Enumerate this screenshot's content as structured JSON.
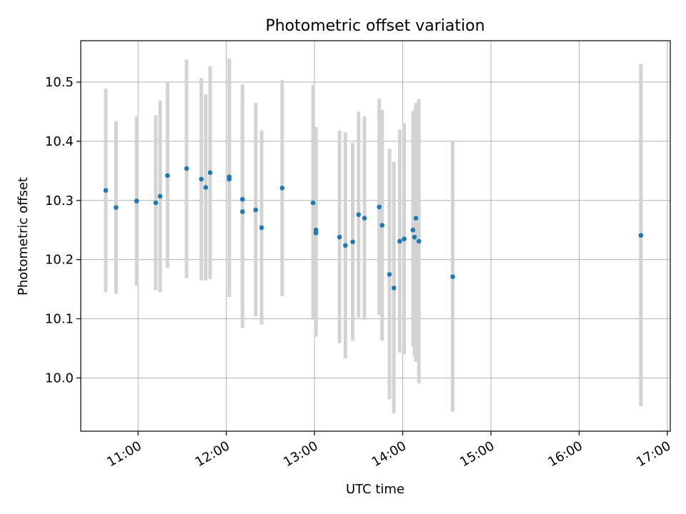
{
  "chart_data": {
    "type": "scatter",
    "title": "Photometric offset variation",
    "xlabel": "UTC time",
    "ylabel": "Photometric offset",
    "xlim": [
      "10:21",
      "17:02"
    ],
    "ylim": [
      9.91,
      10.57
    ],
    "x_ticks": [
      "11:00",
      "12:00",
      "13:00",
      "14:00",
      "15:00",
      "16:00",
      "17:00"
    ],
    "y_ticks": [
      "10.0",
      "10.1",
      "10.2",
      "10.3",
      "10.4",
      "10.5"
    ],
    "grid": true,
    "colors": {
      "point": "#1f77b4",
      "errorbar": "#d3d3d3",
      "grid": "#b0b0b0"
    },
    "series": [
      {
        "points": [
          {
            "x": "10:38",
            "y": 10.317,
            "lo": 10.145,
            "hi": 10.489
          },
          {
            "x": "10:45",
            "y": 10.288,
            "lo": 10.142,
            "hi": 10.434
          },
          {
            "x": "10:59",
            "y": 10.299,
            "lo": 10.156,
            "hi": 10.442
          },
          {
            "x": "11:12",
            "y": 10.296,
            "lo": 10.148,
            "hi": 10.444
          },
          {
            "x": "11:15",
            "y": 10.307,
            "lo": 10.145,
            "hi": 10.469
          },
          {
            "x": "11:20",
            "y": 10.342,
            "lo": 10.186,
            "hi": 10.499
          },
          {
            "x": "11:33",
            "y": 10.354,
            "lo": 10.169,
            "hi": 10.538
          },
          {
            "x": "11:43",
            "y": 10.336,
            "lo": 10.165,
            "hi": 10.507
          },
          {
            "x": "11:46",
            "y": 10.322,
            "lo": 10.165,
            "hi": 10.479
          },
          {
            "x": "11:49",
            "y": 10.347,
            "lo": 10.167,
            "hi": 10.527
          },
          {
            "x": "12:02",
            "y": 10.34,
            "lo": 10.139,
            "hi": 10.54
          },
          {
            "x": "12:02",
            "y": 10.336,
            "lo": 10.137,
            "hi": 10.535
          },
          {
            "x": "12:11",
            "y": 10.302,
            "lo": 10.109,
            "hi": 10.496
          },
          {
            "x": "12:11",
            "y": 10.281,
            "lo": 10.085,
            "hi": 10.477
          },
          {
            "x": "12:20",
            "y": 10.284,
            "lo": 10.104,
            "hi": 10.465
          },
          {
            "x": "12:24",
            "y": 10.254,
            "lo": 10.09,
            "hi": 10.418
          },
          {
            "x": "12:38",
            "y": 10.321,
            "lo": 10.138,
            "hi": 10.504
          },
          {
            "x": "12:59",
            "y": 10.296,
            "lo": 10.098,
            "hi": 10.495
          },
          {
            "x": "13:01",
            "y": 10.25,
            "lo": 10.077,
            "hi": 10.424
          },
          {
            "x": "13:01",
            "y": 10.245,
            "lo": 10.07,
            "hi": 10.42
          },
          {
            "x": "13:17",
            "y": 10.238,
            "lo": 10.059,
            "hi": 10.418
          },
          {
            "x": "13:21",
            "y": 10.224,
            "lo": 10.033,
            "hi": 10.415
          },
          {
            "x": "13:26",
            "y": 10.23,
            "lo": 10.063,
            "hi": 10.397
          },
          {
            "x": "13:30",
            "y": 10.276,
            "lo": 10.102,
            "hi": 10.45
          },
          {
            "x": "13:34",
            "y": 10.27,
            "lo": 10.098,
            "hi": 10.442
          },
          {
            "x": "13:44",
            "y": 10.289,
            "lo": 10.106,
            "hi": 10.472
          },
          {
            "x": "13:46",
            "y": 10.258,
            "lo": 10.063,
            "hi": 10.453
          },
          {
            "x": "13:51",
            "y": 10.175,
            "lo": 9.964,
            "hi": 10.387
          },
          {
            "x": "13:54",
            "y": 10.152,
            "lo": 9.94,
            "hi": 10.365
          },
          {
            "x": "13:58",
            "y": 10.231,
            "lo": 10.043,
            "hi": 10.42
          },
          {
            "x": "14:01",
            "y": 10.235,
            "lo": 10.04,
            "hi": 10.43
          },
          {
            "x": "14:07",
            "y": 10.25,
            "lo": 10.053,
            "hi": 10.45
          },
          {
            "x": "14:08",
            "y": 10.238,
            "lo": 10.036,
            "hi": 10.452
          },
          {
            "x": "14:09",
            "y": 10.27,
            "lo": 10.027,
            "hi": 10.465
          },
          {
            "x": "14:11",
            "y": 10.231,
            "lo": 9.991,
            "hi": 10.471
          },
          {
            "x": "14:34",
            "y": 10.171,
            "lo": 9.943,
            "hi": 10.401
          },
          {
            "x": "16:42",
            "y": 10.241,
            "lo": 9.952,
            "hi": 10.531
          }
        ]
      }
    ]
  }
}
